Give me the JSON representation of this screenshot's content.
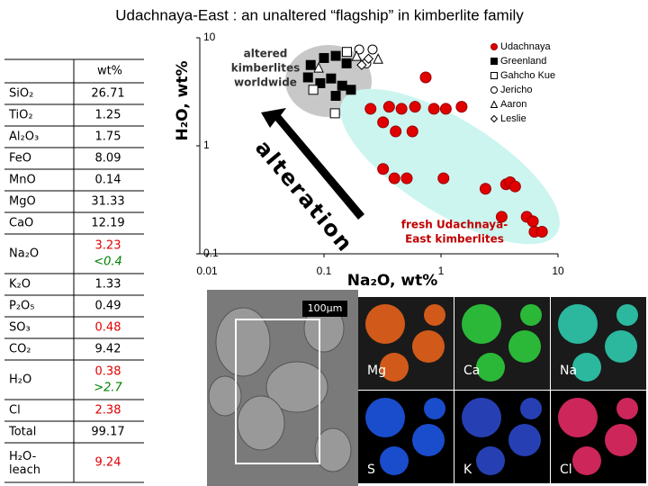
{
  "title": "Udachnaya-East : an unaltered “flagship” in kimberlite family",
  "table": {
    "header": "wt%",
    "rows": [
      {
        "oxide": "SiO₂",
        "value": "26.71"
      },
      {
        "oxide": "TiO₂",
        "value": "1.25"
      },
      {
        "oxide": "Al₂O₃",
        "value": "1.75"
      },
      {
        "oxide": "FeO",
        "value": "8.09"
      },
      {
        "oxide": "MnO",
        "value": "0.14"
      },
      {
        "oxide": "MgO",
        "value": "31.33"
      },
      {
        "oxide": "CaO",
        "value": "12.19"
      },
      {
        "oxide": "Na₂O",
        "value": "3.23",
        "color": "#e00000",
        "note": "<0.4",
        "note_color": "#008000"
      },
      {
        "oxide": "K₂O",
        "value": "1.33"
      },
      {
        "oxide": "P₂O₅",
        "value": "0.49"
      },
      {
        "oxide": "SO₃",
        "value": "0.48",
        "color": "#e00000"
      },
      {
        "oxide": "CO₂",
        "value": "9.42"
      },
      {
        "oxide": "H₂O",
        "value": "0.38",
        "color": "#e00000",
        "note": ">2.7",
        "note_color": "#008000"
      },
      {
        "oxide": "Cl",
        "value": "2.38",
        "color": "#e00000"
      },
      {
        "oxide": "Total",
        "value": "99.17"
      },
      {
        "oxide": "H₂O-leach",
        "value": "9.24",
        "color": "#e00000"
      }
    ]
  },
  "chart_data": {
    "type": "scatter",
    "x_label": "Na₂O, wt%",
    "y_label": "H₂O, wt%",
    "log_x": true,
    "log_y": true,
    "xlim": [
      0.01,
      10
    ],
    "ylim": [
      0.1,
      10
    ],
    "xticks": [
      0.01,
      0.1,
      1,
      10
    ],
    "yticks": [
      0.1,
      1,
      10
    ],
    "legend": "top-right",
    "annotations": [
      {
        "lines": [
          "altered",
          "kimberlites",
          "worldwide"
        ]
      },
      {
        "lines": [
          "fresh Udachnaya-",
          "East kimberlites"
        ]
      },
      {
        "lines": [
          "alteration"
        ]
      }
    ],
    "series": [
      {
        "name": "Udachnaya",
        "color": "#e00000",
        "marker": "circle",
        "filled": true,
        "x": [
          0.25,
          0.36,
          0.46,
          0.6,
          0.32,
          0.41,
          0.57,
          0.74,
          0.87,
          1.1,
          1.5,
          0.32,
          0.4,
          0.51,
          1.05,
          2.4,
          3.6,
          3.9,
          4.3,
          3.3,
          5.4,
          6.1,
          6.3,
          7.3
        ],
        "values": [
          2.2,
          2.3,
          2.2,
          2.3,
          1.65,
          1.36,
          1.36,
          4.3,
          2.2,
          2.2,
          2.3,
          0.61,
          0.5,
          0.5,
          0.5,
          0.4,
          0.44,
          0.46,
          0.42,
          0.22,
          0.22,
          0.2,
          0.16,
          0.16
        ]
      },
      {
        "name": "Greenland",
        "color": "#000000",
        "marker": "square",
        "filled": true,
        "x": [
          0.077,
          0.1,
          0.126,
          0.156,
          0.093,
          0.115,
          0.143,
          0.073,
          0.126,
          0.17
        ],
        "values": [
          5.6,
          6.5,
          6.8,
          5.8,
          3.8,
          4.2,
          3.6,
          4.3,
          2.9,
          3.3
        ]
      },
      {
        "name": "Gahcho Kue",
        "color": "#000000",
        "marker": "square",
        "filled": false,
        "x": [
          0.081,
          0.124,
          0.157
        ],
        "values": [
          3.3,
          2.0,
          7.4
        ]
      },
      {
        "name": "Jericho",
        "color": "#000000",
        "marker": "circle",
        "filled": false,
        "x": [
          0.2,
          0.23,
          0.26
        ],
        "values": [
          7.8,
          5.8,
          7.8
        ]
      },
      {
        "name": "Aaron",
        "color": "#000000",
        "marker": "triangle",
        "filled": false,
        "x": [
          0.09,
          0.29,
          0.19
        ],
        "values": [
          5.3,
          6.4,
          6.8
        ]
      },
      {
        "name": "Leslie",
        "color": "#000000",
        "marker": "diamond",
        "filled": false,
        "x": [
          0.24,
          0.21
        ],
        "values": [
          6.4,
          5.6
        ]
      }
    ]
  },
  "images": {
    "scale_bar": "100µm",
    "maps": [
      "Mg",
      "Ca",
      "Na",
      "S",
      "K",
      "Cl"
    ]
  }
}
